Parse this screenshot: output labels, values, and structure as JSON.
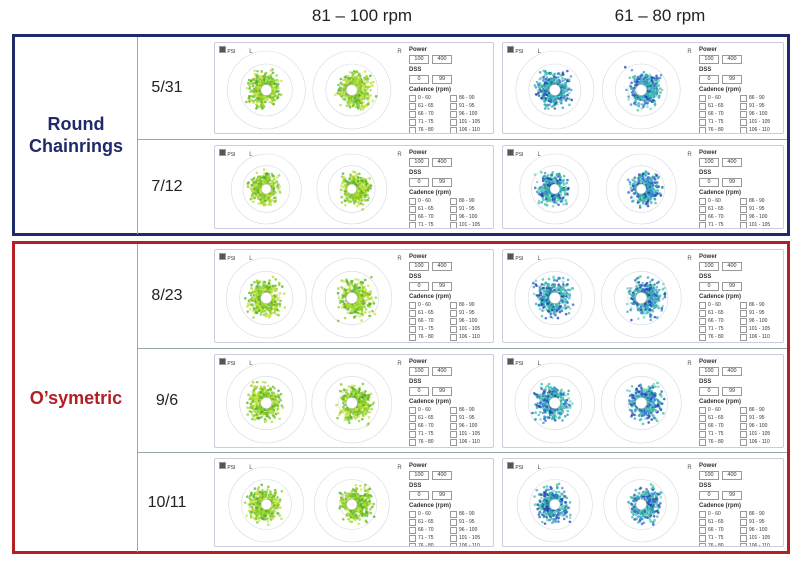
{
  "column_headers": {
    "left": "81 – 100 rpm",
    "right": "61 – 80 rpm"
  },
  "groups": {
    "round": {
      "label_line1": "Round",
      "label_line2": "Chainrings",
      "color": "#1f2a6b",
      "dates": [
        "5/31",
        "7/12"
      ]
    },
    "osym": {
      "label": "O’symetric",
      "color": "#b21f24",
      "dates": [
        "8/23",
        "9/6",
        "10/11"
      ]
    }
  },
  "panel": {
    "psi_label": "PSI",
    "left_label": "L",
    "right_label": "R",
    "power_label": "Power",
    "power_min": "100",
    "power_max": "400",
    "dss_label": "DSS",
    "dss_min": "0",
    "dss_max": "99",
    "cadence_label": "Cadence (rpm)",
    "cadence_options": [
      "0 - 60",
      "86 - 90",
      "61 - 65",
      "91 - 95",
      "66 - 70",
      "96 - 100",
      "71 - 75",
      "101 - 105",
      "76 - 80",
      "106 - 110",
      "81 - 85",
      "111 - 240"
    ]
  },
  "colors": {
    "green": "#6cc22c",
    "green_light": "#b8dc2e",
    "blue": "#2b5bc8",
    "teal": "#2fb7a6"
  }
}
